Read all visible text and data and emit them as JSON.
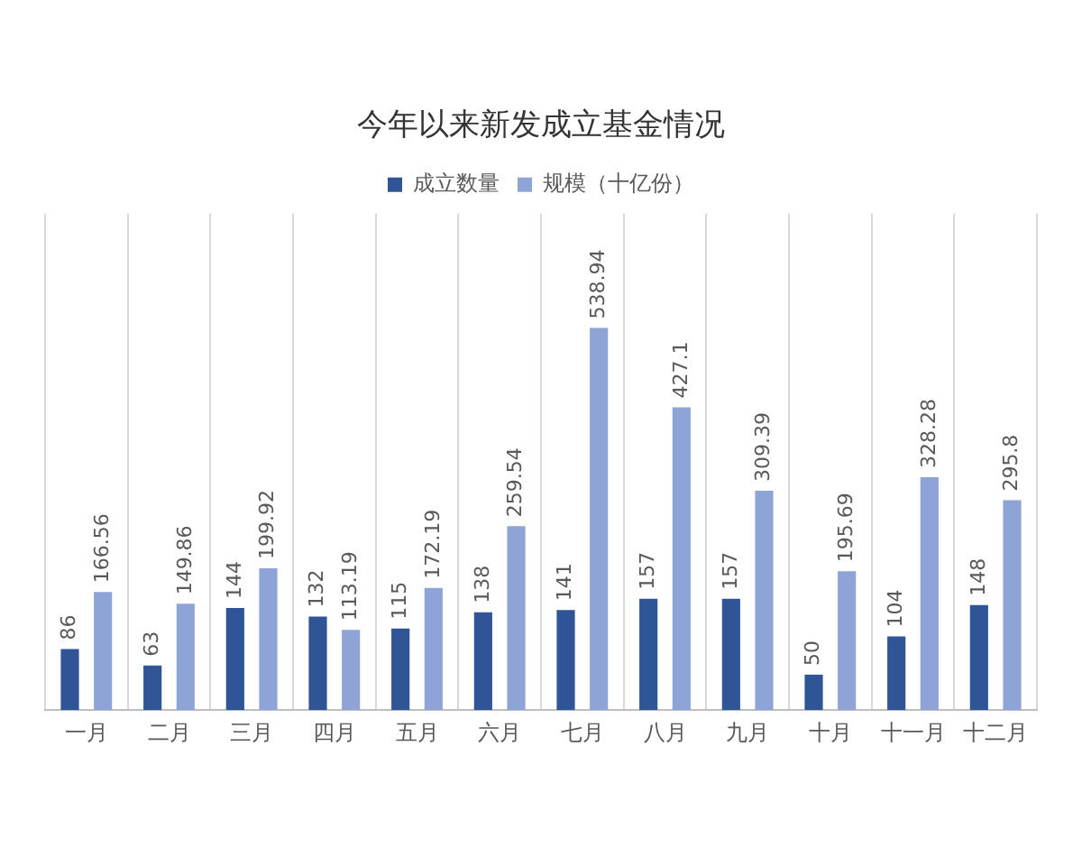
{
  "chart_data": {
    "type": "bar",
    "title": "今年以来新发成立基金情况",
    "categories": [
      "一月",
      "二月",
      "三月",
      "四月",
      "五月",
      "六月",
      "七月",
      "八月",
      "九月",
      "十月",
      "十一月",
      "十二月"
    ],
    "series": [
      {
        "name": "成立数量",
        "color": "#2f5597",
        "values": [
          86,
          63,
          144,
          132,
          115,
          138,
          141,
          157,
          157,
          50,
          104,
          148
        ]
      },
      {
        "name": "规模（十亿份）",
        "color": "#8fa4d6",
        "values": [
          166.56,
          149.86,
          199.92,
          113.19,
          172.19,
          259.54,
          538.94,
          427.1,
          309.39,
          195.69,
          328.28,
          295.8
        ]
      }
    ],
    "data_labels": true,
    "grid": "x",
    "legend": "top",
    "tick_labels": "x"
  }
}
